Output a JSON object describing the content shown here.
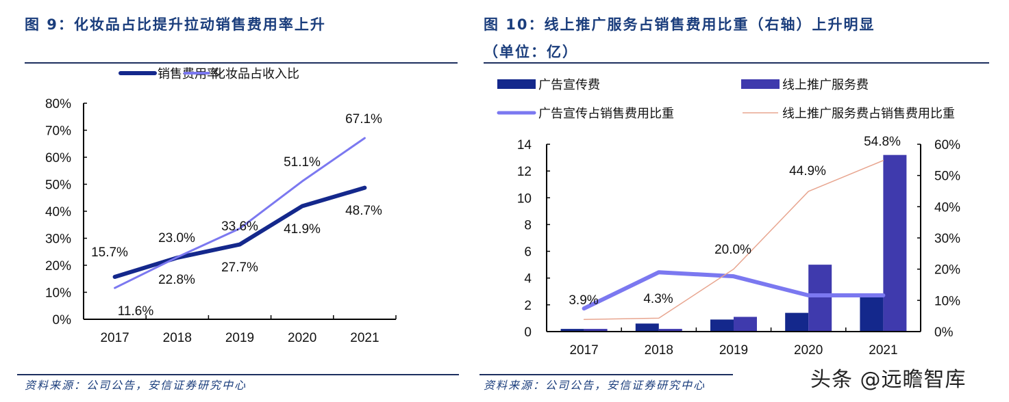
{
  "page": {
    "left_title": "图 9：化妆品占比提升拉动销售费用率上升",
    "right_title_line1": "图 10：线上推广服务占销售费用比重（右轴）上升明显",
    "right_title_line2": "（单位：亿）",
    "left_source": "资料来源：公司公告，安信证券研究中心",
    "right_source": "资料来源：公司公告，安信证券研究中心",
    "watermark": "头条 @远瞻智库"
  },
  "colors": {
    "title": "#1a3d7c",
    "dark_navy": "#14288c",
    "light_purple": "#7b78f0",
    "bar_purple": "#3f3aad",
    "salmon": "#e8a58f",
    "rule": "#1c2e5e"
  },
  "chart_data": [
    {
      "type": "line",
      "title": "图 9：化妆品占比提升拉动销售费用率上升",
      "categories": [
        "2017",
        "2018",
        "2019",
        "2020",
        "2021"
      ],
      "ylim": [
        0,
        80
      ],
      "yticks": [
        "0%",
        "10%",
        "20%",
        "30%",
        "40%",
        "50%",
        "60%",
        "70%",
        "80%"
      ],
      "legend_position": "top",
      "grid": false,
      "series": [
        {
          "name": "销售费用率",
          "values": [
            15.7,
            22.8,
            27.7,
            41.9,
            48.7
          ],
          "labels": [
            "15.7%",
            "22.8%",
            "27.7%",
            "41.9%",
            "48.7%"
          ],
          "color": "#14288c"
        },
        {
          "name": "化妆品占收入比",
          "values": [
            11.6,
            23.0,
            33.6,
            51.1,
            67.1
          ],
          "labels": [
            "11.6%",
            "23.0%",
            "33.6%",
            "51.1%",
            "67.1%"
          ],
          "color": "#7b78f0"
        }
      ]
    },
    {
      "type": "bar",
      "title": "图 10：线上推广服务占销售费用比重（右轴）上升明显（单位：亿）",
      "categories": [
        "2017",
        "2018",
        "2019",
        "2020",
        "2021"
      ],
      "ylim": [
        0,
        14
      ],
      "yticks": [
        "0",
        "2",
        "4",
        "6",
        "8",
        "10",
        "12",
        "14"
      ],
      "y2lim": [
        0,
        60
      ],
      "y2ticks": [
        "0%",
        "10%",
        "20%",
        "30%",
        "40%",
        "50%",
        "60%"
      ],
      "legend_position": "top",
      "grid": false,
      "series": [
        {
          "name": "广告宣传费",
          "kind": "bar",
          "axis": "left",
          "values": [
            0.2,
            0.6,
            0.9,
            1.4,
            2.6
          ],
          "color": "#14288c"
        },
        {
          "name": "线上推广服务费",
          "kind": "bar",
          "axis": "left",
          "values": [
            0.2,
            0.2,
            1.1,
            5.0,
            13.2
          ],
          "color": "#3f3aad"
        },
        {
          "name": "广告宣传占销售费用比重",
          "kind": "line",
          "axis": "right",
          "values": [
            7.4,
            19.0,
            17.7,
            11.6,
            11.6
          ],
          "color": "#7b78f0"
        },
        {
          "name": "线上推广服务费占销售费用比重",
          "kind": "line",
          "axis": "right",
          "values": [
            3.9,
            4.3,
            20.0,
            44.9,
            54.8
          ],
          "labels": [
            "3.9%",
            "4.3%",
            "20.0%",
            "44.9%",
            "54.8%"
          ],
          "color": "#e8a58f"
        }
      ]
    }
  ]
}
